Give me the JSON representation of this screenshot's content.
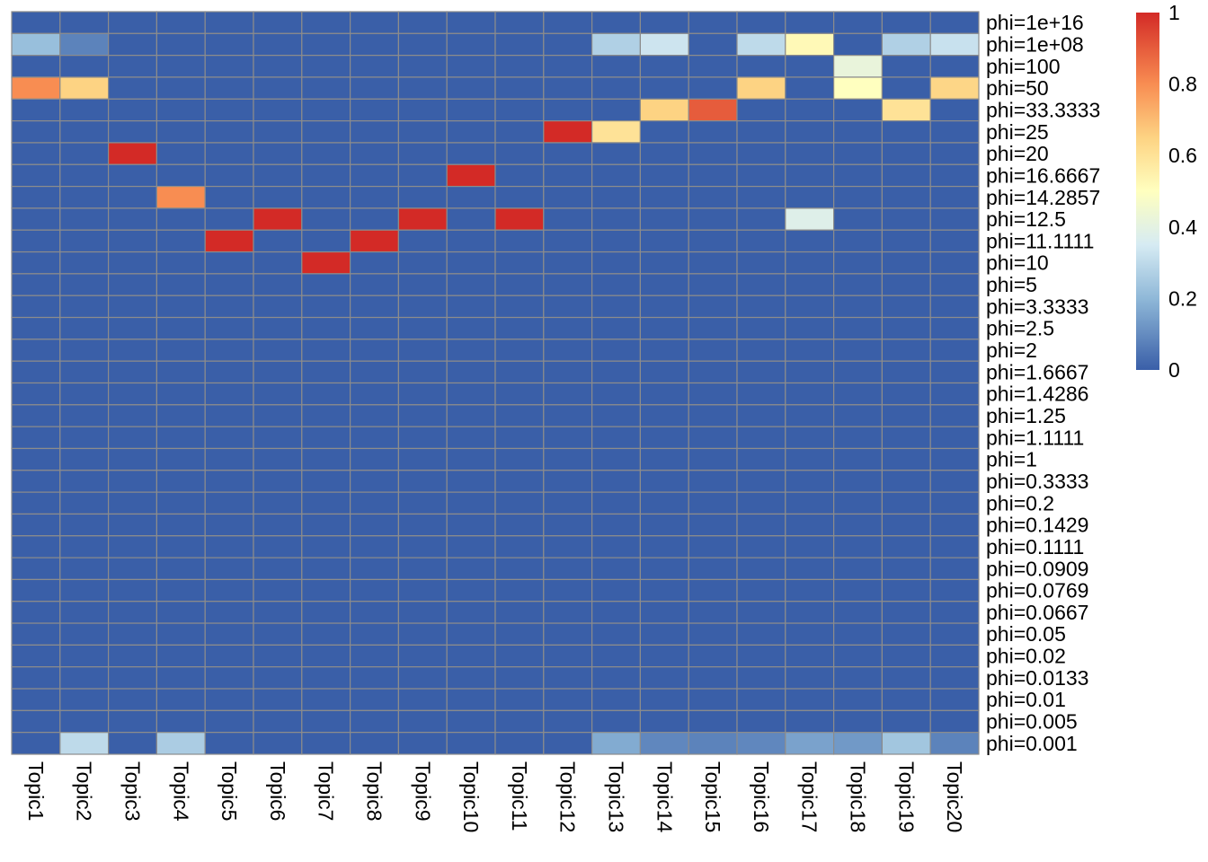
{
  "chart_data": {
    "type": "heatmap",
    "title": "",
    "xlabel": "",
    "ylabel": "",
    "columns": [
      "Topic1",
      "Topic2",
      "Topic3",
      "Topic4",
      "Topic5",
      "Topic6",
      "Topic7",
      "Topic8",
      "Topic9",
      "Topic10",
      "Topic11",
      "Topic12",
      "Topic13",
      "Topic14",
      "Topic15",
      "Topic16",
      "Topic17",
      "Topic18",
      "Topic19",
      "Topic20"
    ],
    "rows": [
      "phi=1e+16",
      "phi=1e+08",
      "phi=100",
      "phi=50",
      "phi=33.3333",
      "phi=25",
      "phi=20",
      "phi=16.6667",
      "phi=14.2857",
      "phi=12.5",
      "phi=11.1111",
      "phi=10",
      "phi=5",
      "phi=3.3333",
      "phi=2.5",
      "phi=2",
      "phi=1.6667",
      "phi=1.4286",
      "phi=1.25",
      "phi=1.1111",
      "phi=1",
      "phi=0.3333",
      "phi=0.2",
      "phi=0.1429",
      "phi=0.1111",
      "phi=0.0909",
      "phi=0.0769",
      "phi=0.0667",
      "phi=0.05",
      "phi=0.02",
      "phi=0.0133",
      "phi=0.01",
      "phi=0.005",
      "phi=0.001"
    ],
    "cells": [
      {
        "row": 1,
        "col": 0,
        "value": 0.22
      },
      {
        "row": 1,
        "col": 1,
        "value": 0.08
      },
      {
        "row": 1,
        "col": 12,
        "value": 0.27
      },
      {
        "row": 1,
        "col": 13,
        "value": 0.33
      },
      {
        "row": 1,
        "col": 15,
        "value": 0.3
      },
      {
        "row": 1,
        "col": 16,
        "value": 0.52
      },
      {
        "row": 1,
        "col": 18,
        "value": 0.27
      },
      {
        "row": 1,
        "col": 19,
        "value": 0.32
      },
      {
        "row": 2,
        "col": 17,
        "value": 0.42
      },
      {
        "row": 3,
        "col": 0,
        "value": 0.8
      },
      {
        "row": 3,
        "col": 1,
        "value": 0.65
      },
      {
        "row": 3,
        "col": 15,
        "value": 0.65
      },
      {
        "row": 3,
        "col": 17,
        "value": 0.5
      },
      {
        "row": 3,
        "col": 19,
        "value": 0.64
      },
      {
        "row": 4,
        "col": 13,
        "value": 0.65
      },
      {
        "row": 4,
        "col": 14,
        "value": 0.9
      },
      {
        "row": 4,
        "col": 18,
        "value": 0.6
      },
      {
        "row": 5,
        "col": 11,
        "value": 1.0
      },
      {
        "row": 5,
        "col": 12,
        "value": 0.6
      },
      {
        "row": 6,
        "col": 2,
        "value": 1.0
      },
      {
        "row": 7,
        "col": 9,
        "value": 1.0
      },
      {
        "row": 8,
        "col": 3,
        "value": 0.8
      },
      {
        "row": 9,
        "col": 5,
        "value": 1.0
      },
      {
        "row": 9,
        "col": 8,
        "value": 1.0
      },
      {
        "row": 9,
        "col": 10,
        "value": 1.0
      },
      {
        "row": 9,
        "col": 16,
        "value": 0.38
      },
      {
        "row": 10,
        "col": 4,
        "value": 1.0
      },
      {
        "row": 10,
        "col": 7,
        "value": 1.0
      },
      {
        "row": 11,
        "col": 6,
        "value": 1.0
      },
      {
        "row": 33,
        "col": 1,
        "value": 0.3
      },
      {
        "row": 33,
        "col": 3,
        "value": 0.26
      },
      {
        "row": 33,
        "col": 12,
        "value": 0.17
      },
      {
        "row": 33,
        "col": 13,
        "value": 0.09
      },
      {
        "row": 33,
        "col": 14,
        "value": 0.08
      },
      {
        "row": 33,
        "col": 15,
        "value": 0.09
      },
      {
        "row": 33,
        "col": 16,
        "value": 0.15
      },
      {
        "row": 33,
        "col": 17,
        "value": 0.13
      },
      {
        "row": 33,
        "col": 18,
        "value": 0.24
      },
      {
        "row": 33,
        "col": 19,
        "value": 0.08
      }
    ],
    "default_value": 0,
    "value_range": [
      0,
      1
    ],
    "colorbar": {
      "ticks": [
        "0",
        "0.2",
        "0.4",
        "0.6",
        "0.8",
        "1"
      ],
      "position": "right"
    },
    "colors": {
      "low": "#3a5fa8",
      "mid": "#ffffbf",
      "high": "#d32a26",
      "cell_border": "#8c8c8c"
    },
    "grid": true
  }
}
